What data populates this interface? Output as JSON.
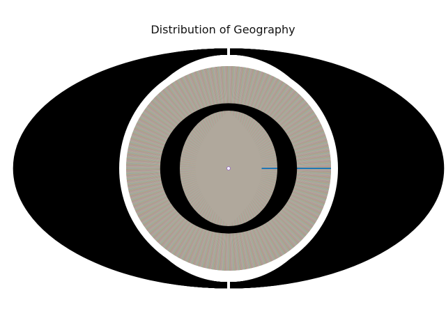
{
  "chart_data": {
    "type": "pie",
    "title": "Distribution of Geography",
    "slice_count": 1200,
    "legend": "none",
    "label_style": "category labels outside, percentage labels inside (heavily overlapping)",
    "note": "Hundreds of near-equal slices; individual category names and percentages are illegible in the source image.",
    "palette": [
      "#1f77b4",
      "#ff7f0e",
      "#2ca02c",
      "#d62728",
      "#9467bd",
      "#8c564b",
      "#e377c2",
      "#7f7f7f",
      "#bcbd22",
      "#17becf"
    ],
    "dominant_slice_color": "#1f77b4"
  }
}
